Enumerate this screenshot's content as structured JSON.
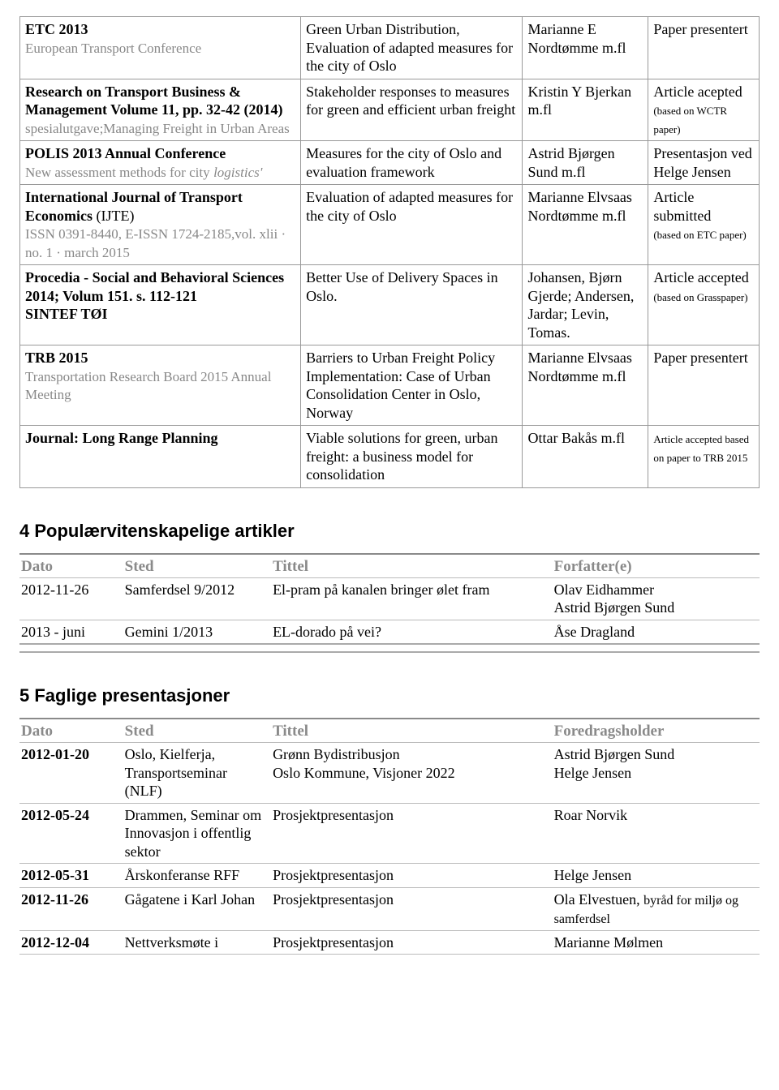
{
  "publications": [
    {
      "venue_bold": "ETC 2013",
      "venue_sub": "European Transport Conference",
      "title": "Green Urban Distribution, Evaluation of adapted measures for the city of Oslo",
      "author": "Marianne E Nordtømme m.fl",
      "status": "Paper presentert",
      "status_note": ""
    },
    {
      "venue_bold": "Research on Transport Business & Management Volume 11, pp. 32-42 (2014)",
      "venue_sub": "spesialutgave;Managing Freight in Urban Areas",
      "title": "Stakeholder responses to measures for green and efficient urban freight",
      "author": "Kristin Y Bjerkan m.fl",
      "status": "Article acepted",
      "status_note": "(based on WCTR paper)"
    },
    {
      "venue_bold": "POLIS 2013 Annual Conference",
      "venue_sub": "New assessment methods for city",
      "venue_sub_italic": "logistics'",
      "title": "Measures for the city of Oslo and evaluation framework",
      "author": "Astrid Bjørgen Sund m.fl",
      "status": "Presentasjon ved Helge Jensen",
      "status_note": ""
    },
    {
      "venue_bold": "International Journal of Transport Economics",
      "venue_bold_tail": " (IJTE)",
      "venue_sub": "ISSN 0391-8440, E-ISSN 1724-2185,vol. xlii · no. 1 · march 2015",
      "title": "Evaluation of adapted measures for the city of Oslo",
      "author": "Marianne Elvsaas Nordtømme m.fl",
      "status": "Article submitted",
      "status_note": "(based on ETC paper)"
    },
    {
      "venue_bold": "Procedia - Social and Behavioral Sciences 2014; Volum 151. s. 112-121\nSINTEF TØI",
      "venue_sub": "",
      "title": "Better Use of Delivery Spaces in Oslo.",
      "author": "Johansen, Bjørn Gjerde; Andersen, Jardar; Levin, Tomas.",
      "status": "Article accepted",
      "status_note": "(based on Grasspaper)"
    },
    {
      "venue_bold": "TRB 2015",
      "venue_sub": "Transportation Research Board 2015 Annual Meeting",
      "title": "Barriers to Urban Freight Policy Implementation: Case of Urban Consolidation Center in Oslo, Norway",
      "author": "Marianne Elvsaas Nordtømme m.fl",
      "status": "Paper presentert",
      "status_note": ""
    },
    {
      "venue_bold": "Journal: Long Range Planning",
      "venue_sub": "",
      "title": "Viable solutions for green, urban freight: a business model for consolidation",
      "author": "Ottar Bakås m.fl",
      "status_small": "Article accepted based on paper to TRB 2015"
    }
  ],
  "section4": {
    "heading": "4   Populærvitenskapelige artikler",
    "headers": {
      "dato": "Dato",
      "sted": "Sted",
      "tittel": "Tittel",
      "forf": "Forfatter(e)"
    },
    "rows": [
      {
        "dato": "2012-11-26",
        "sted": "Samferdsel 9/2012",
        "tittel": "El-pram på kanalen bringer ølet fram",
        "forf": "Olav Eidhammer\nAstrid Bjørgen Sund"
      },
      {
        "dato": "2013 - juni",
        "sted": "Gemini 1/2013",
        "tittel": "EL-dorado på vei?",
        "forf": "Åse Dragland"
      }
    ]
  },
  "section5": {
    "heading": "5   Faglige presentasjoner",
    "headers": {
      "dato": "Dato",
      "sted": "Sted",
      "tittel": "Tittel",
      "foredrag": "Foredragsholder"
    },
    "rows": [
      {
        "dato": "2012-01-20",
        "dato_bold": true,
        "sted": "Oslo, Kielferja, Transportseminar (NLF)",
        "tittel": "Grønn Bydistribusjon\nOslo Kommune, Visjoner 2022",
        "foredrag": "Astrid Bjørgen Sund\nHelge Jensen"
      },
      {
        "dato": "2012-05-24",
        "dato_bold": true,
        "sted": "Drammen, Seminar om Innovasjon i offentlig sektor",
        "tittel": "Prosjektpresentasjon",
        "foredrag": "Roar Norvik"
      },
      {
        "dato": "2012-05-31",
        "dato_bold": true,
        "sted": "Årskonferanse RFF",
        "tittel": "Prosjektpresentasjon",
        "foredrag": "Helge Jensen"
      },
      {
        "dato": "2012-11-26",
        "dato_bold": true,
        "sted": "Gågatene i Karl Johan",
        "tittel": "Prosjektpresentasjon",
        "foredrag_main": "Ola Elvestuen, ",
        "foredrag_sub": "byråd for miljø og samferdsel"
      },
      {
        "dato": "2012-12-04",
        "dato_bold": true,
        "sted": "Nettverksmøte i",
        "tittel": "Prosjektpresentasjon",
        "foredrag": "Marianne Mølmen"
      }
    ]
  }
}
